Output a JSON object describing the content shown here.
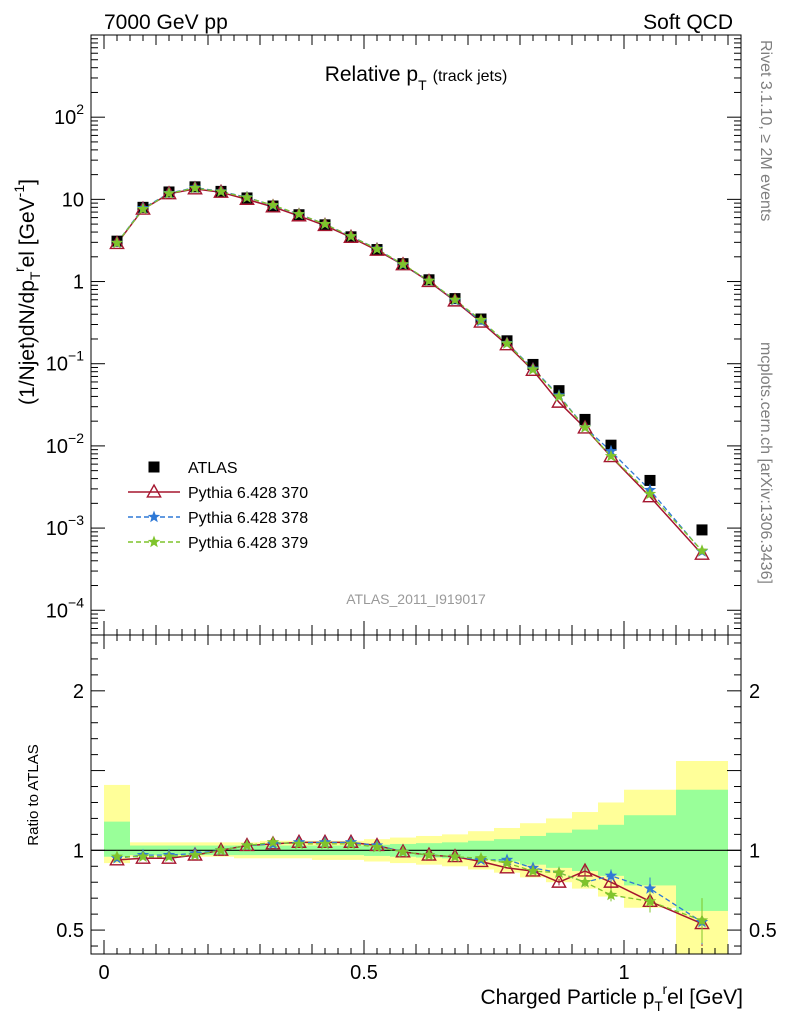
{
  "header": {
    "left": "7000 GeV pp",
    "right": "Soft QCD"
  },
  "side_text": {
    "rivet": "Rivet 3.1.10, ≥ 2M events",
    "site": "mcplots.cern.ch [arXiv:1306.3436]"
  },
  "analysis_label": "ATLAS_2011_I919017",
  "colors": {
    "data": "#000000",
    "p370": "#a5162f",
    "p378": "#2f79d6",
    "p379": "#7fc42c",
    "band_inner": "#99ff99",
    "band_outer": "#ffff99"
  },
  "chart_data": [
    {
      "type": "scatter",
      "log_y": true,
      "title": "Relative p_T (track jets)",
      "title_main": "Relative p",
      "title_sub": "T",
      "title_note": "(track jets)",
      "ylabel": "(1/Njet)dN/dp_T^rel [GeV^-1]",
      "ylabel_parts": {
        "a": "(1/Njet)dN/dp",
        "b": "T",
        "c": "r",
        "d": "el [GeV",
        "e": "-1",
        "f": "]"
      },
      "xlim": [
        -0.025,
        1.225
      ],
      "ylim": [
        5e-05,
        1000
      ],
      "y_major_ticks": [
        {
          "v": 0.0001,
          "base": "10",
          "exp": "−4"
        },
        {
          "v": 0.001,
          "base": "10",
          "exp": "−3"
        },
        {
          "v": 0.01,
          "base": "10",
          "exp": "−2"
        },
        {
          "v": 0.1,
          "base": "10",
          "exp": "−1"
        },
        {
          "v": 1,
          "base": "1",
          "exp": ""
        },
        {
          "v": 10,
          "base": "10",
          "exp": ""
        },
        {
          "v": 100,
          "base": "10",
          "exp": "2"
        }
      ],
      "x": [
        0.025,
        0.075,
        0.125,
        0.175,
        0.225,
        0.275,
        0.325,
        0.375,
        0.425,
        0.475,
        0.525,
        0.575,
        0.625,
        0.675,
        0.725,
        0.775,
        0.825,
        0.875,
        0.925,
        0.975,
        1.05,
        1.15
      ],
      "series": [
        {
          "name": "ATLAS",
          "style": "data",
          "values": [
            3.1,
            8.0,
            12.3,
            14.2,
            12.5,
            10.4,
            8.3,
            6.5,
            4.9,
            3.5,
            2.45,
            1.65,
            1.05,
            0.62,
            0.35,
            0.19,
            0.098,
            0.047,
            0.021,
            0.0102,
            0.0038,
            0.00095
          ]
        },
        {
          "name": "Pythia 6.428 370",
          "style": "p370",
          "values": [
            2.9,
            7.6,
            11.7,
            13.4,
            12.2,
            10.0,
            8.1,
            6.3,
            4.8,
            3.45,
            2.4,
            1.6,
            1.0,
            0.58,
            0.32,
            0.17,
            0.083,
            0.034,
            0.0165,
            0.0074,
            0.0024,
            0.00048
          ]
        },
        {
          "name": "Pythia 6.428 378",
          "style": "p378",
          "values": [
            2.95,
            7.8,
            11.9,
            13.9,
            12.5,
            10.6,
            8.4,
            6.6,
            5.0,
            3.55,
            2.5,
            1.6,
            1.02,
            0.59,
            0.33,
            0.178,
            0.087,
            0.041,
            0.0168,
            0.0086,
            0.0029,
            0.00052
          ]
        },
        {
          "name": "Pythia 6.428 379",
          "style": "p379",
          "values": [
            2.95,
            7.6,
            11.8,
            13.7,
            12.4,
            10.5,
            8.5,
            6.6,
            5.0,
            3.55,
            2.48,
            1.62,
            1.02,
            0.6,
            0.34,
            0.176,
            0.085,
            0.04,
            0.0167,
            0.0075,
            0.0026,
            0.00053
          ]
        }
      ]
    },
    {
      "type": "scatter",
      "ylabel": "Ratio to ATLAS",
      "xlabel": "Charged Particle p_T^rel [GeV]",
      "xlabel_parts": {
        "a": "Charged Particle p",
        "b": "T",
        "c": "r",
        "d": "el [GeV]"
      },
      "xlim": [
        -0.025,
        1.225
      ],
      "ylim": [
        0.35,
        2.35
      ],
      "x_tick_labels": [
        {
          "v": 0,
          "label": "0"
        },
        {
          "v": 0.5,
          "label": "0.5"
        },
        {
          "v": 1,
          "label": "1"
        }
      ],
      "y_tick_labels": [
        {
          "v": 0.5,
          "label": "0.5"
        },
        {
          "v": 1,
          "label": "1"
        },
        {
          "v": 2,
          "label": "2"
        }
      ],
      "bins": [
        [
          0,
          0.05
        ],
        [
          0.05,
          0.1
        ],
        [
          0.1,
          0.15
        ],
        [
          0.15,
          0.2
        ],
        [
          0.2,
          0.25
        ],
        [
          0.25,
          0.3
        ],
        [
          0.3,
          0.35
        ],
        [
          0.35,
          0.4
        ],
        [
          0.4,
          0.45
        ],
        [
          0.45,
          0.5
        ],
        [
          0.5,
          0.55
        ],
        [
          0.55,
          0.6
        ],
        [
          0.6,
          0.65
        ],
        [
          0.65,
          0.7
        ],
        [
          0.7,
          0.75
        ],
        [
          0.75,
          0.8
        ],
        [
          0.8,
          0.85
        ],
        [
          0.85,
          0.9
        ],
        [
          0.9,
          0.95
        ],
        [
          0.95,
          1.0
        ],
        [
          1.0,
          1.1
        ],
        [
          1.1,
          1.2
        ]
      ],
      "band_inner": [
        [
          0.96,
          1.18
        ],
        [
          0.97,
          1.03
        ],
        [
          0.97,
          1.03
        ],
        [
          0.97,
          1.03
        ],
        [
          0.97,
          1.03
        ],
        [
          0.97,
          1.03
        ],
        [
          0.97,
          1.03
        ],
        [
          0.97,
          1.03
        ],
        [
          0.97,
          1.03
        ],
        [
          0.97,
          1.03
        ],
        [
          0.965,
          1.035
        ],
        [
          0.96,
          1.04
        ],
        [
          0.955,
          1.045
        ],
        [
          0.95,
          1.05
        ],
        [
          0.94,
          1.06
        ],
        [
          0.93,
          1.07
        ],
        [
          0.91,
          1.09
        ],
        [
          0.89,
          1.11
        ],
        [
          0.87,
          1.13
        ],
        [
          0.84,
          1.16
        ],
        [
          0.78,
          1.22
        ],
        [
          0.62,
          1.38
        ]
      ],
      "band_outer": [
        [
          0.92,
          1.41
        ],
        [
          0.96,
          1.05
        ],
        [
          0.96,
          1.05
        ],
        [
          0.96,
          1.05
        ],
        [
          0.96,
          1.05
        ],
        [
          0.95,
          1.05
        ],
        [
          0.95,
          1.06
        ],
        [
          0.95,
          1.06
        ],
        [
          0.94,
          1.06
        ],
        [
          0.94,
          1.06
        ],
        [
          0.93,
          1.07
        ],
        [
          0.92,
          1.08
        ],
        [
          0.91,
          1.09
        ],
        [
          0.9,
          1.1
        ],
        [
          0.88,
          1.12
        ],
        [
          0.86,
          1.14
        ],
        [
          0.83,
          1.17
        ],
        [
          0.8,
          1.2
        ],
        [
          0.76,
          1.24
        ],
        [
          0.71,
          1.3
        ],
        [
          0.64,
          1.38
        ],
        [
          0.33,
          1.56
        ]
      ],
      "x": [
        0.025,
        0.075,
        0.125,
        0.175,
        0.225,
        0.275,
        0.325,
        0.375,
        0.425,
        0.475,
        0.525,
        0.575,
        0.625,
        0.675,
        0.725,
        0.775,
        0.825,
        0.875,
        0.925,
        0.975,
        1.05,
        1.15
      ],
      "series": [
        {
          "name": "Pythia 6.428 370",
          "style": "p370",
          "values": [
            0.94,
            0.95,
            0.95,
            0.97,
            1.0,
            1.03,
            1.04,
            1.05,
            1.05,
            1.05,
            1.03,
            0.99,
            0.97,
            0.96,
            0.93,
            0.89,
            0.87,
            0.8,
            0.87,
            0.8,
            0.68,
            0.54
          ],
          "errors": [
            0,
            0,
            0,
            0,
            0,
            0,
            0,
            0,
            0,
            0,
            0,
            0,
            0,
            0,
            0,
            0,
            0.02,
            0.02,
            0.03,
            0.04,
            0.07,
            0.14
          ]
        },
        {
          "name": "Pythia 6.428 378",
          "style": "p378",
          "values": [
            0.95,
            0.97,
            0.97,
            0.98,
            1.0,
            1.03,
            1.04,
            1.05,
            1.05,
            1.05,
            1.03,
            0.99,
            0.97,
            0.96,
            0.94,
            0.94,
            0.89,
            0.86,
            0.8,
            0.84,
            0.76,
            0.55
          ],
          "errors": [
            0,
            0,
            0,
            0,
            0,
            0,
            0,
            0,
            0,
            0,
            0,
            0,
            0,
            0,
            0,
            0,
            0.02,
            0.02,
            0.03,
            0.04,
            0.07,
            0.14
          ]
        },
        {
          "name": "Pythia 6.428 379",
          "style": "p379",
          "values": [
            0.96,
            0.96,
            0.96,
            0.97,
            1.0,
            1.03,
            1.05,
            1.04,
            1.04,
            1.04,
            1.02,
            0.99,
            0.97,
            0.96,
            0.95,
            0.92,
            0.87,
            0.86,
            0.8,
            0.72,
            0.68,
            0.56
          ],
          "errors": [
            0,
            0,
            0,
            0,
            0,
            0,
            0,
            0,
            0,
            0,
            0,
            0,
            0,
            0,
            0,
            0,
            0.02,
            0.02,
            0.03,
            0.04,
            0.07,
            0.14
          ]
        }
      ]
    }
  ]
}
